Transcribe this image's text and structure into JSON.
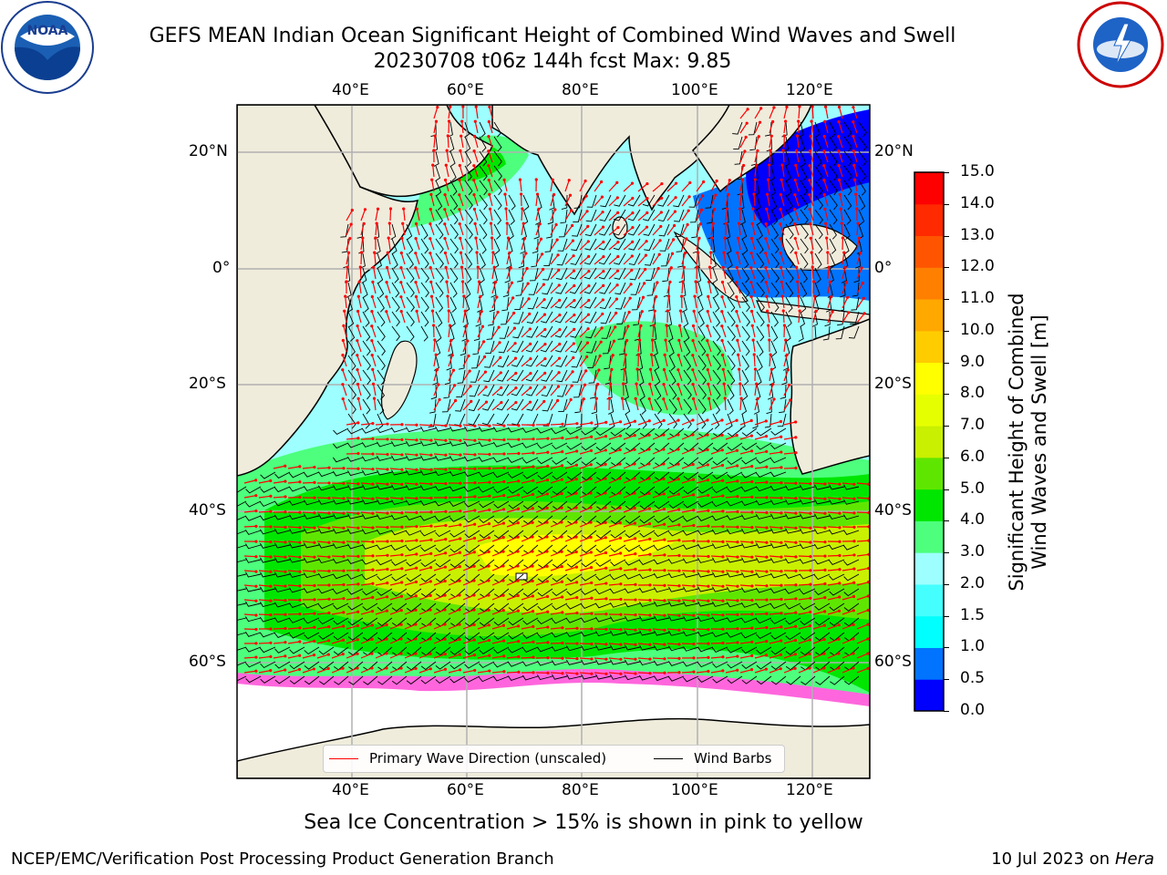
{
  "header": {
    "title_line1": "GEFS MEAN Indian Ocean Significant Height of Combined Wind Waves and Swell",
    "title_line2": "20230708 t06z 144h fcst   Max: 9.85"
  },
  "logos": {
    "left": {
      "name": "NOAA",
      "text": "NOAA"
    },
    "right": {
      "name": "National Weather Service"
    }
  },
  "map": {
    "lon_labels": [
      "40°E",
      "60°E",
      "80°E",
      "100°E",
      "120°E"
    ],
    "lat_labels": [
      "20°N",
      "0°",
      "20°S",
      "40°S",
      "60°S"
    ],
    "colors": {
      "land": "#efecdc",
      "ice": "#ffffff",
      "wave_arrow": "#ff0000",
      "wind_barb": "#000000",
      "grid": "#b0b0b0"
    },
    "legend": {
      "wave": "Primary Wave Direction (unscaled)",
      "wind": "Wind Barbs"
    }
  },
  "colorbar": {
    "label_line1": "Significant Height of Combined",
    "label_line2": "Wind Waves and Swell [m]",
    "ticks": [
      "0.0",
      "0.5",
      "1.0",
      "1.5",
      "2.0",
      "3.0",
      "4.0",
      "5.0",
      "6.0",
      "7.0",
      "8.0",
      "9.0",
      "10.0",
      "11.0",
      "12.0",
      "13.0",
      "14.0",
      "15.0"
    ],
    "colors": [
      "#0000ff",
      "#0073ff",
      "#00ffff",
      "#45ffff",
      "#9dffff",
      "#4dff7d",
      "#00e600",
      "#5fe600",
      "#c8f000",
      "#e6ff00",
      "#ffff00",
      "#ffcc00",
      "#ffa800",
      "#ff8000",
      "#ff5500",
      "#ff2a00",
      "#ff0000"
    ]
  },
  "footer": {
    "subtitle": "Sea Ice Concentration > 15% is shown in pink to yellow",
    "left": "NCEP/EMC/Verification Post Processing Product Generation Branch",
    "right_date": "10 Jul 2023 on ",
    "right_host": "Hera"
  }
}
